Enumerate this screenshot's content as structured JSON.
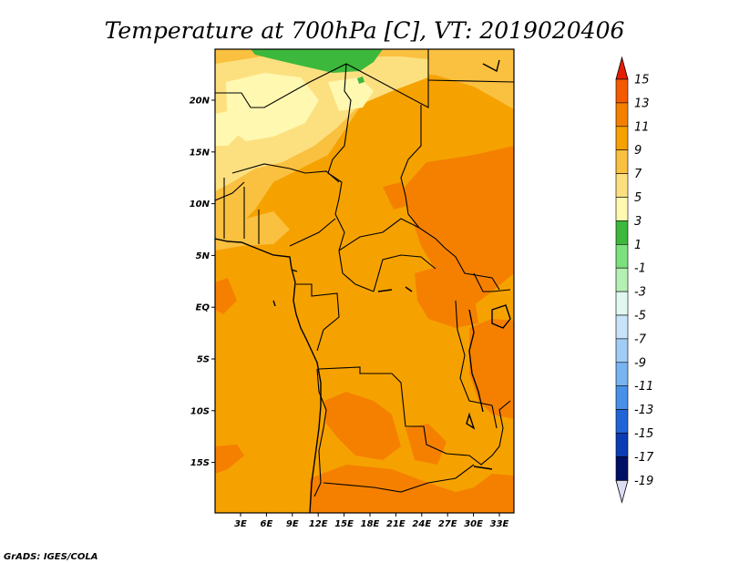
{
  "title": "Temperature at 700hPa [C], VT: 2019020406",
  "footer": "GrADS: IGES/COLA",
  "map": {
    "background_color": "#f5a200",
    "lat_labels": [
      "20N",
      "15N",
      "10N",
      "5N",
      "EQ",
      "5S",
      "10S",
      "15S"
    ],
    "lon_labels": [
      "3E",
      "6E",
      "9E",
      "12E",
      "15E",
      "18E",
      "21E",
      "24E",
      "27E",
      "30E",
      "33E"
    ]
  },
  "colorbar": {
    "labels": [
      "15",
      "13",
      "11",
      "9",
      "7",
      "5",
      "3",
      "1",
      "-1",
      "-3",
      "-5",
      "-7",
      "-9",
      "-11",
      "-13",
      "-15",
      "-17",
      "-19"
    ],
    "colors": [
      "#e61e00",
      "#f55a00",
      "#f58000",
      "#f5a200",
      "#fac040",
      "#fce080",
      "#fff8b0",
      "#3cb83c",
      "#7ce07c",
      "#b4f0b4",
      "#e0f8f0",
      "#c8e4fa",
      "#a0ccf5",
      "#78b4f0",
      "#4890e8",
      "#2064d8",
      "#0a3cb4",
      "#001064",
      "#000050"
    ],
    "top_tip_color": "#e61e00",
    "bottom_tip_color": "#dcdcf5"
  }
}
